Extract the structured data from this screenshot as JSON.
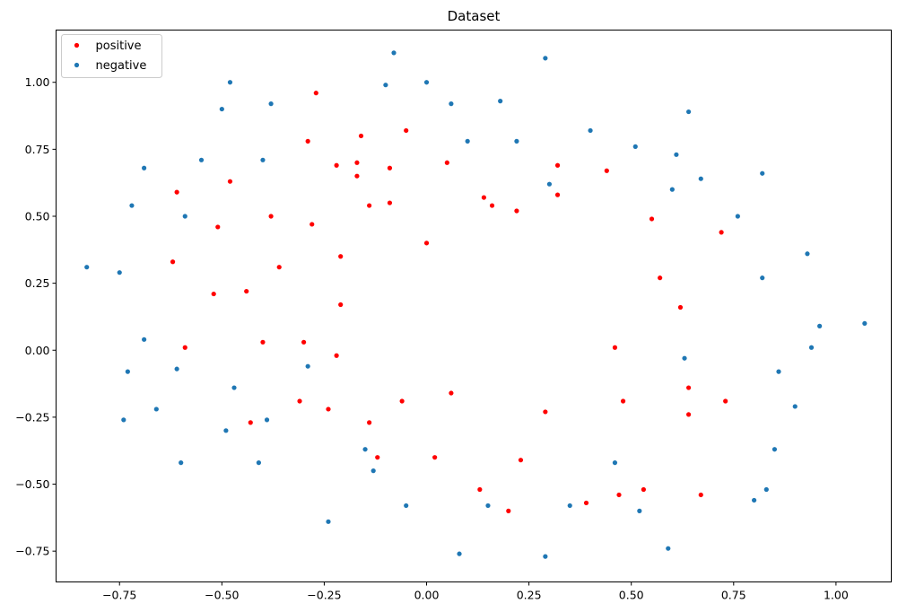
{
  "chart_data": {
    "type": "scatter",
    "title": "Dataset",
    "xlabel": "",
    "ylabel": "",
    "xlim": [
      -0.905,
      1.135
    ],
    "ylim": [
      -0.865,
      1.195
    ],
    "xticks": [
      -0.75,
      -0.5,
      -0.25,
      0.0,
      0.25,
      0.5,
      0.75,
      1.0
    ],
    "xtick_labels": [
      "−0.75",
      "−0.50",
      "−0.25",
      "0.00",
      "0.25",
      "0.50",
      "0.75",
      "1.00"
    ],
    "yticks": [
      -0.75,
      -0.5,
      -0.25,
      0.0,
      0.25,
      0.5,
      0.75,
      1.0
    ],
    "ytick_labels": [
      "−0.75",
      "−0.50",
      "−0.25",
      "0.00",
      "0.25",
      "0.50",
      "0.75",
      "1.00"
    ],
    "grid": false,
    "legend_position": "upper-left",
    "series": [
      {
        "name": "positive",
        "color": "#ff0000",
        "points": [
          [
            -0.27,
            0.96
          ],
          [
            -0.05,
            0.82
          ],
          [
            -0.29,
            0.78
          ],
          [
            -0.16,
            0.8
          ],
          [
            -0.22,
            0.69
          ],
          [
            -0.17,
            0.7
          ],
          [
            -0.09,
            0.68
          ],
          [
            0.05,
            0.7
          ],
          [
            0.32,
            0.69
          ],
          [
            0.44,
            0.67
          ],
          [
            -0.48,
            0.63
          ],
          [
            -0.17,
            0.65
          ],
          [
            -0.61,
            0.59
          ],
          [
            0.14,
            0.57
          ],
          [
            0.32,
            0.58
          ],
          [
            -0.14,
            0.54
          ],
          [
            -0.09,
            0.55
          ],
          [
            0.16,
            0.54
          ],
          [
            0.22,
            0.52
          ],
          [
            -0.38,
            0.5
          ],
          [
            -0.28,
            0.47
          ],
          [
            -0.51,
            0.46
          ],
          [
            0.55,
            0.49
          ],
          [
            0.72,
            0.44
          ],
          [
            0.0,
            0.4
          ],
          [
            -0.21,
            0.35
          ],
          [
            -0.62,
            0.33
          ],
          [
            -0.36,
            0.31
          ],
          [
            0.57,
            0.27
          ],
          [
            -0.52,
            0.21
          ],
          [
            -0.44,
            0.22
          ],
          [
            -0.21,
            0.17
          ],
          [
            0.62,
            0.16
          ],
          [
            -0.59,
            0.01
          ],
          [
            -0.4,
            0.03
          ],
          [
            -0.3,
            0.03
          ],
          [
            -0.22,
            -0.02
          ],
          [
            0.46,
            0.01
          ],
          [
            0.64,
            -0.14
          ],
          [
            -0.31,
            -0.19
          ],
          [
            -0.06,
            -0.19
          ],
          [
            0.06,
            -0.16
          ],
          [
            0.48,
            -0.19
          ],
          [
            0.73,
            -0.19
          ],
          [
            -0.24,
            -0.22
          ],
          [
            0.29,
            -0.23
          ],
          [
            0.64,
            -0.24
          ],
          [
            -0.43,
            -0.27
          ],
          [
            -0.14,
            -0.27
          ],
          [
            -0.12,
            -0.4
          ],
          [
            0.02,
            -0.4
          ],
          [
            0.23,
            -0.41
          ],
          [
            0.13,
            -0.52
          ],
          [
            0.47,
            -0.54
          ],
          [
            0.53,
            -0.52
          ],
          [
            0.67,
            -0.54
          ],
          [
            0.39,
            -0.57
          ],
          [
            0.2,
            -0.6
          ]
        ]
      },
      {
        "name": "negative",
        "color": "#1f77b4",
        "points": [
          [
            -0.08,
            1.11
          ],
          [
            0.29,
            1.09
          ],
          [
            -0.48,
            1.0
          ],
          [
            0.0,
            1.0
          ],
          [
            -0.1,
            0.99
          ],
          [
            0.18,
            0.93
          ],
          [
            -0.5,
            0.9
          ],
          [
            -0.38,
            0.92
          ],
          [
            0.06,
            0.92
          ],
          [
            0.64,
            0.89
          ],
          [
            0.4,
            0.82
          ],
          [
            0.1,
            0.78
          ],
          [
            0.22,
            0.78
          ],
          [
            0.51,
            0.76
          ],
          [
            -0.55,
            0.71
          ],
          [
            -0.4,
            0.71
          ],
          [
            0.61,
            0.73
          ],
          [
            -0.69,
            0.68
          ],
          [
            0.82,
            0.66
          ],
          [
            0.67,
            0.64
          ],
          [
            0.3,
            0.62
          ],
          [
            0.6,
            0.6
          ],
          [
            -0.72,
            0.54
          ],
          [
            -0.59,
            0.5
          ],
          [
            0.76,
            0.5
          ],
          [
            0.93,
            0.36
          ],
          [
            -0.83,
            0.31
          ],
          [
            -0.75,
            0.29
          ],
          [
            0.82,
            0.27
          ],
          [
            0.96,
            0.09
          ],
          [
            1.07,
            0.1
          ],
          [
            -0.69,
            0.04
          ],
          [
            0.94,
            0.01
          ],
          [
            0.63,
            -0.03
          ],
          [
            -0.29,
            -0.06
          ],
          [
            -0.61,
            -0.07
          ],
          [
            -0.73,
            -0.08
          ],
          [
            0.86,
            -0.08
          ],
          [
            -0.47,
            -0.14
          ],
          [
            0.9,
            -0.21
          ],
          [
            -0.66,
            -0.22
          ],
          [
            -0.74,
            -0.26
          ],
          [
            -0.39,
            -0.26
          ],
          [
            -0.49,
            -0.3
          ],
          [
            -0.15,
            -0.37
          ],
          [
            0.85,
            -0.37
          ],
          [
            -0.41,
            -0.42
          ],
          [
            -0.6,
            -0.42
          ],
          [
            0.46,
            -0.42
          ],
          [
            -0.13,
            -0.45
          ],
          [
            0.83,
            -0.52
          ],
          [
            0.8,
            -0.56
          ],
          [
            -0.05,
            -0.58
          ],
          [
            0.15,
            -0.58
          ],
          [
            0.35,
            -0.58
          ],
          [
            0.52,
            -0.6
          ],
          [
            -0.24,
            -0.64
          ],
          [
            0.59,
            -0.74
          ],
          [
            0.08,
            -0.76
          ],
          [
            0.29,
            -0.77
          ]
        ]
      }
    ]
  }
}
